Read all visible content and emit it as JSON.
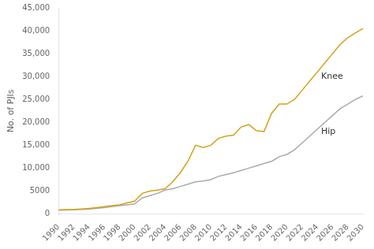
{
  "chart_data": {
    "type": "line",
    "ylabel": "No. of PJIs",
    "grid": false,
    "xlim": [
      1990,
      2030
    ],
    "xticks": [
      1990,
      1992,
      1994,
      1996,
      1998,
      2000,
      2002,
      2004,
      2006,
      2008,
      2010,
      2012,
      2014,
      2016,
      2018,
      2020,
      2022,
      2024,
      2026,
      2028,
      2030
    ],
    "ylim": [
      0,
      45000
    ],
    "yticks": [
      0,
      5000,
      {
        "value": 10000,
        "label": "10,000"
      },
      {
        "value": 15000,
        "label": "15,000"
      },
      {
        "value": 20000,
        "label": "20,000"
      },
      {
        "value": 25000,
        "label": "25,000"
      },
      {
        "value": 30000,
        "label": "30,000"
      },
      {
        "value": 35000,
        "label": "35,000"
      },
      {
        "value": 40000,
        "label": "40,000"
      },
      {
        "value": 45000,
        "label": "45,000"
      }
    ],
    "x": [
      1990,
      1991,
      1992,
      1993,
      1994,
      1995,
      1996,
      1997,
      1998,
      1999,
      2000,
      2001,
      2002,
      2003,
      2004,
      2005,
      2006,
      2007,
      2008,
      2009,
      2010,
      2011,
      2012,
      2013,
      2014,
      2015,
      2016,
      2017,
      2018,
      2019,
      2020,
      2021,
      2022,
      2023,
      2024,
      2025,
      2026,
      2027,
      2028,
      2029,
      2030
    ],
    "series": [
      {
        "color": "#D4A017",
        "values": [
          900,
          950,
          1000,
          1100,
          1200,
          1400,
          1600,
          1800,
          2000,
          2400,
          2800,
          4500,
          5000,
          5200,
          5500,
          7000,
          9000,
          11500,
          15000,
          14500,
          15000,
          16500,
          17000,
          17200,
          19000,
          19500,
          18200,
          18000,
          22000,
          24000,
          24000,
          25000,
          27000,
          29000,
          31000,
          33000,
          35000,
          37000,
          38500,
          39500,
          40500
        ]
      },
      {
        "color": "#AAAAAA",
        "values": [
          800,
          850,
          900,
          1000,
          1100,
          1200,
          1400,
          1600,
          1800,
          2000,
          2200,
          3500,
          4000,
          4500,
          5200,
          5500,
          6000,
          6500,
          7000,
          7200,
          7500,
          8200,
          8600,
          9000,
          9500,
          10000,
          10500,
          11000,
          11500,
          12500,
          13000,
          14000,
          15500,
          17000,
          18500,
          20000,
          21500,
          23000,
          24000,
          25000,
          25800
        ]
      }
    ],
    "annotations": [
      {
        "text": "Knee",
        "x": 2024.5,
        "y": 30000
      },
      {
        "text": "Hip",
        "x": 2024.5,
        "y": 18000
      }
    ]
  }
}
